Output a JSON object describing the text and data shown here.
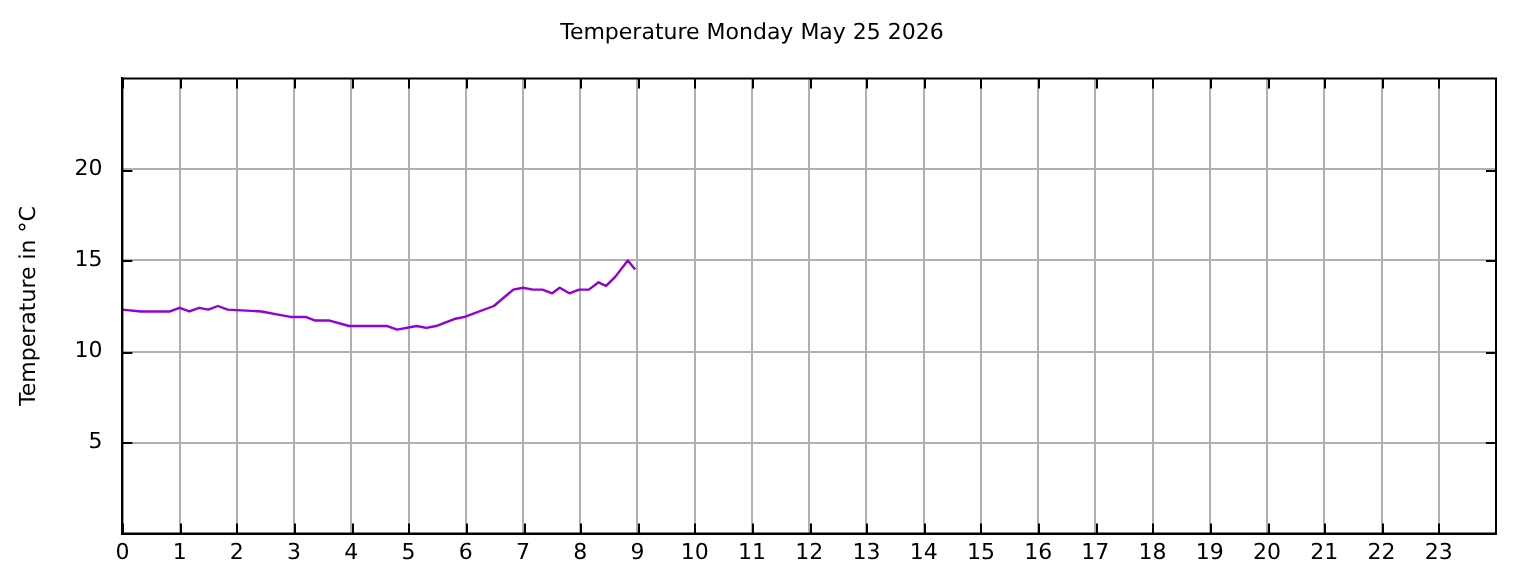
{
  "chart_data": {
    "type": "line",
    "title": "Temperature Monday May 25 2026",
    "ylabel": "Temperature in °C",
    "x": [
      0,
      0.32,
      0.83,
      1.0,
      1.17,
      1.34,
      1.5,
      1.67,
      1.84,
      2.43,
      2.77,
      2.94,
      3.2,
      3.37,
      3.62,
      3.96,
      4.63,
      4.8,
      5.14,
      5.31,
      5.48,
      5.82,
      5.98,
      6.49,
      6.83,
      7.0,
      7.17,
      7.34,
      7.51,
      7.64,
      7.81,
      7.98,
      8.15,
      8.32,
      8.45,
      8.61,
      8.83,
      8.96
    ],
    "series": [
      {
        "color": "#9400d3",
        "values": [
          12.3,
          12.2,
          12.2,
          12.4,
          12.2,
          12.4,
          12.3,
          12.5,
          12.3,
          12.2,
          12.0,
          11.9,
          11.9,
          11.7,
          11.7,
          11.4,
          11.4,
          11.2,
          11.4,
          11.3,
          11.4,
          11.8,
          11.9,
          12.5,
          13.4,
          13.5,
          13.4,
          13.4,
          13.2,
          13.5,
          13.2,
          13.4,
          13.4,
          13.8,
          13.6,
          14.1,
          15.0,
          14.5
        ]
      }
    ],
    "xlim": [
      0,
      24
    ],
    "xticks": [
      0,
      1,
      2,
      3,
      4,
      5,
      6,
      7,
      8,
      9,
      10,
      11,
      12,
      13,
      14,
      15,
      16,
      17,
      18,
      19,
      20,
      21,
      22,
      23
    ],
    "ylim": [
      0,
      25
    ],
    "yticks": [
      5,
      10,
      15,
      20
    ],
    "grid": true,
    "legend": false,
    "marker": "none",
    "line_style": "solid"
  }
}
